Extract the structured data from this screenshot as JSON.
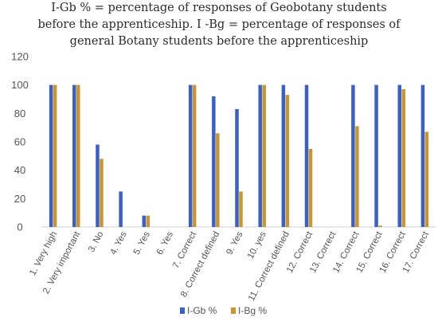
{
  "title_lines": [
    "I-Gb % = percentage of responses of Geobotany students",
    "before the apprenticeship. I -Bg = percentage of responses of",
    "general Botany students before the apprenticeship"
  ],
  "colors": {
    "I-Gb %": "#3a5fc7",
    "I-Bg %": "#c9962d"
  },
  "chart_data": {
    "type": "bar",
    "title": "I-Gb % = percentage of responses of Geobotany students before the apprenticeship. I -Bg = percentage of responses of general Botany students before the apprenticeship",
    "categories": [
      "1. Very high",
      "2. Very important",
      "3. No",
      "4. Yes",
      "5. Yes",
      "6. Yes",
      "7. Correct",
      "8. Correct defined",
      "9. Yes",
      "10. yes",
      "11. Correct defined",
      "12. Correct",
      "13. Correct",
      "14. Correct",
      "15. Correct",
      "16. Correct",
      "17. Correct"
    ],
    "series": [
      {
        "name": "I-Gb %",
        "values": [
          100,
          100,
          58,
          25,
          8,
          0,
          100,
          92,
          83,
          100,
          100,
          100,
          0,
          100,
          100,
          100,
          100
        ]
      },
      {
        "name": "I-Bg %",
        "values": [
          100,
          100,
          48,
          0,
          8,
          0,
          100,
          66,
          25,
          100,
          93,
          55,
          0,
          71,
          1,
          97,
          67
        ]
      }
    ],
    "yticks": [
      0,
      20,
      40,
      60,
      80,
      100,
      120
    ],
    "ylim": [
      0,
      120
    ],
    "xlabel": "",
    "ylabel": "",
    "grid": false,
    "legend_position": "bottom"
  }
}
